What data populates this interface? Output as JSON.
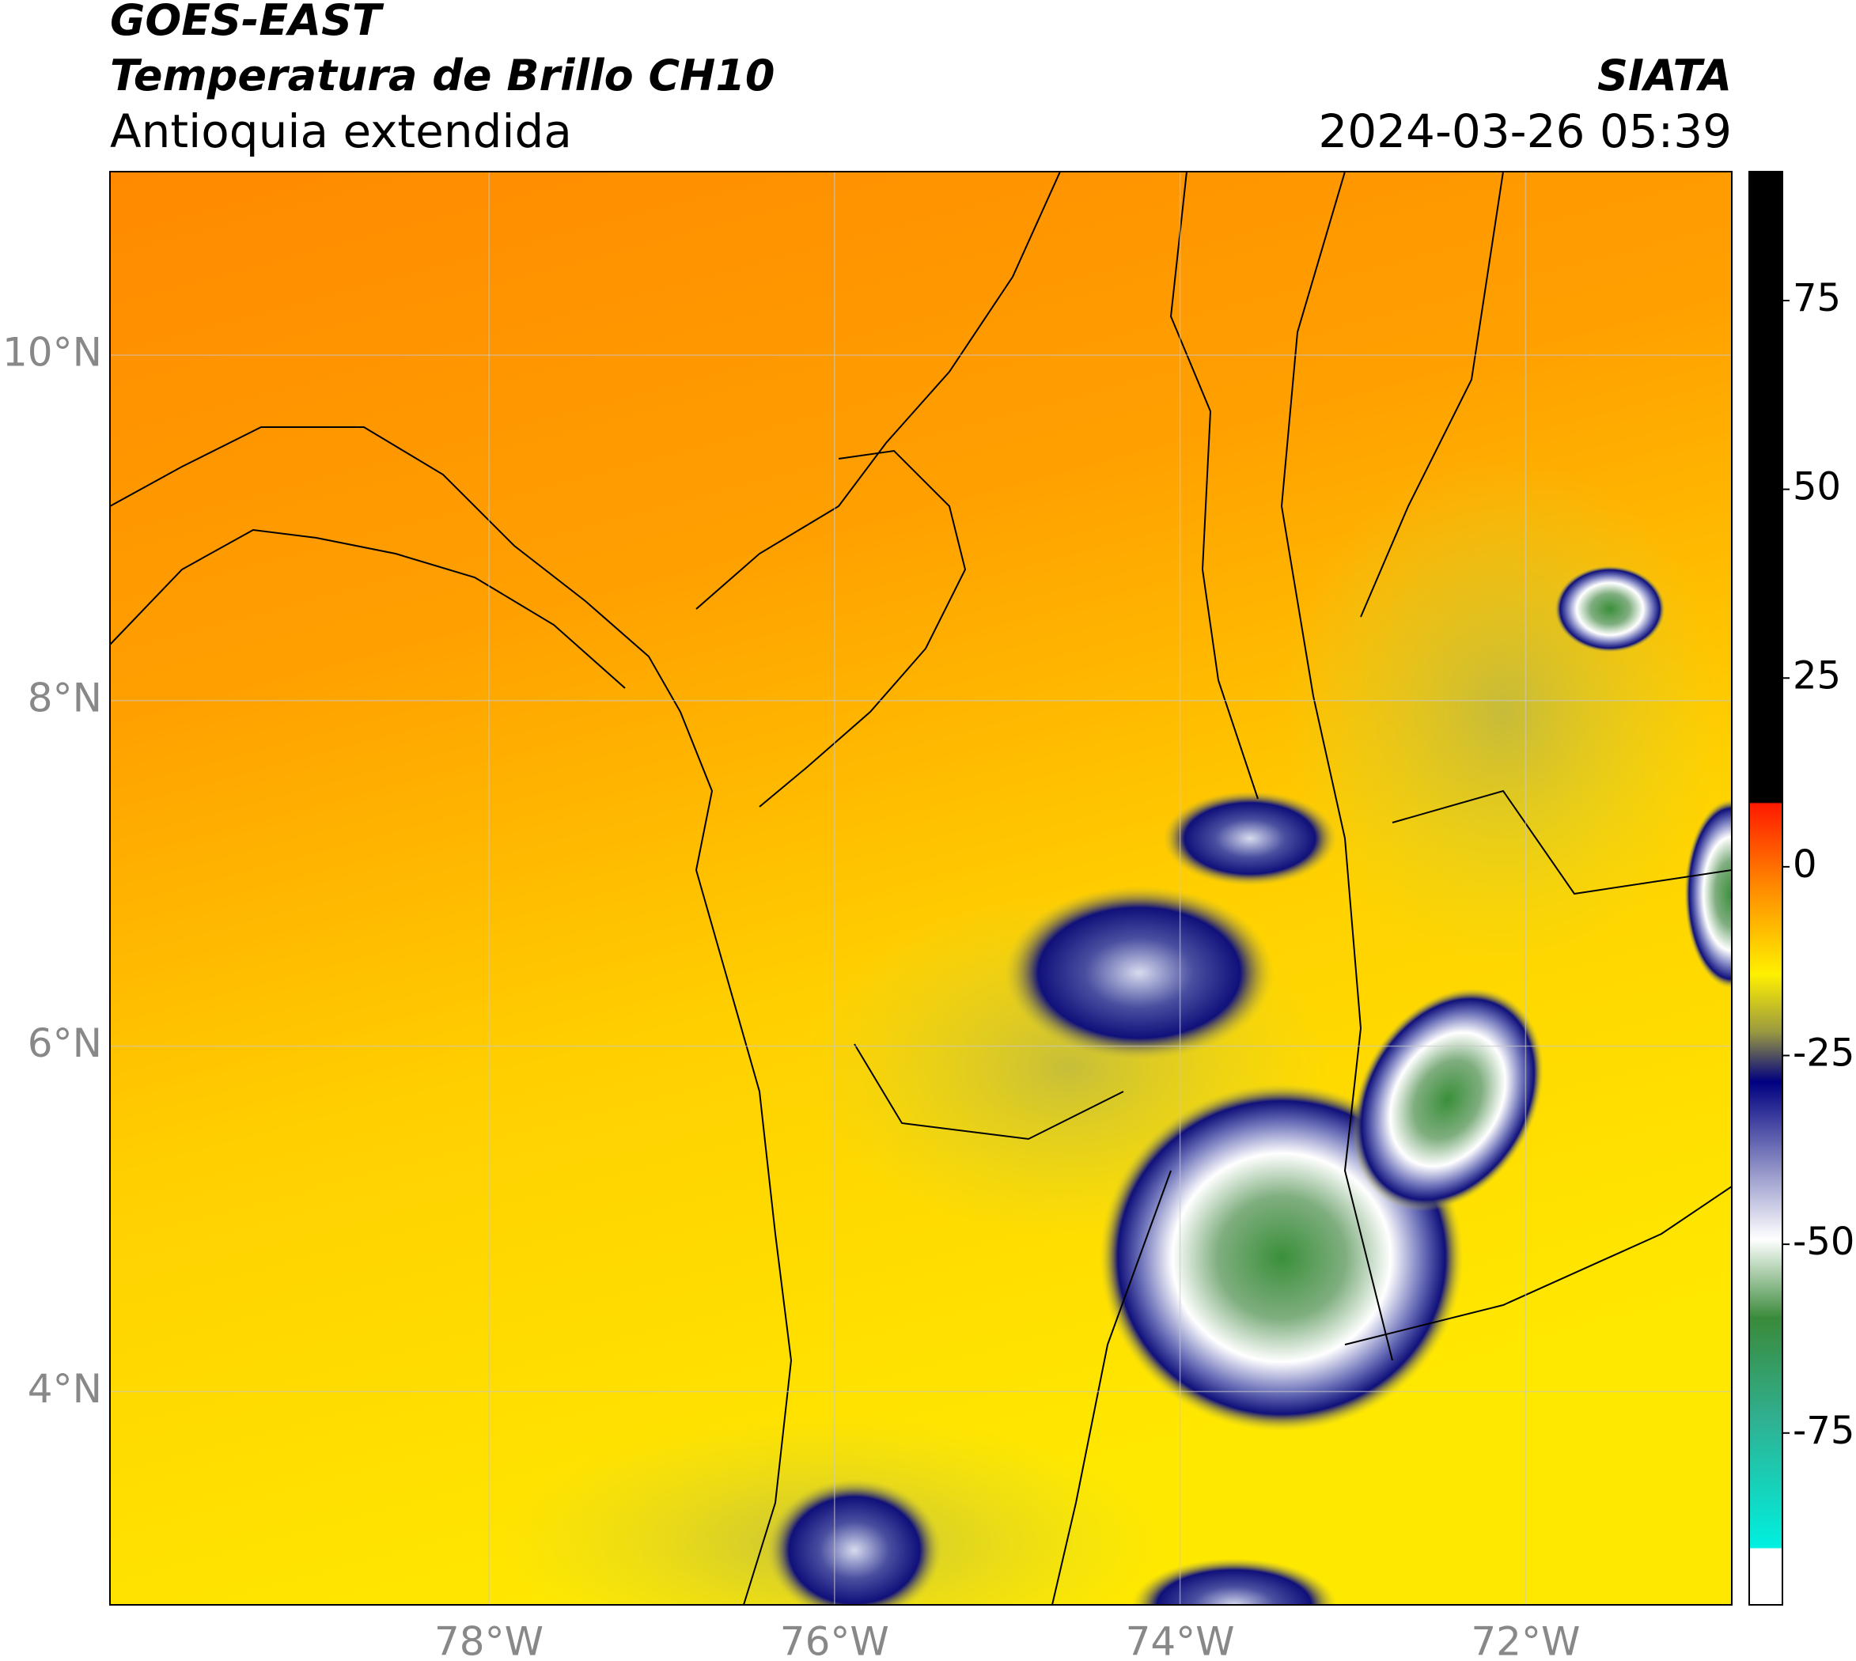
{
  "header": {
    "title": "GOES-EAST",
    "subtitle": "Temperatura de Brillo CH10",
    "region": "Antioquia extendida",
    "source": "SIATA",
    "datetime": "2024-03-26 05:39"
  },
  "map": {
    "lon_ticks": [
      {
        "value": -78,
        "label": "78°W"
      },
      {
        "value": -76,
        "label": "76°W"
      },
      {
        "value": -74,
        "label": "74°W"
      },
      {
        "value": -72,
        "label": "72°W"
      }
    ],
    "lat_ticks": [
      {
        "value": 10,
        "label": "10°N"
      },
      {
        "value": 8,
        "label": "8°N"
      },
      {
        "value": 6,
        "label": "6°N"
      },
      {
        "value": 4,
        "label": "4°N"
      }
    ],
    "colorbar_ticks": [
      75,
      50,
      25,
      0,
      -25,
      -50,
      -75
    ]
  }
}
